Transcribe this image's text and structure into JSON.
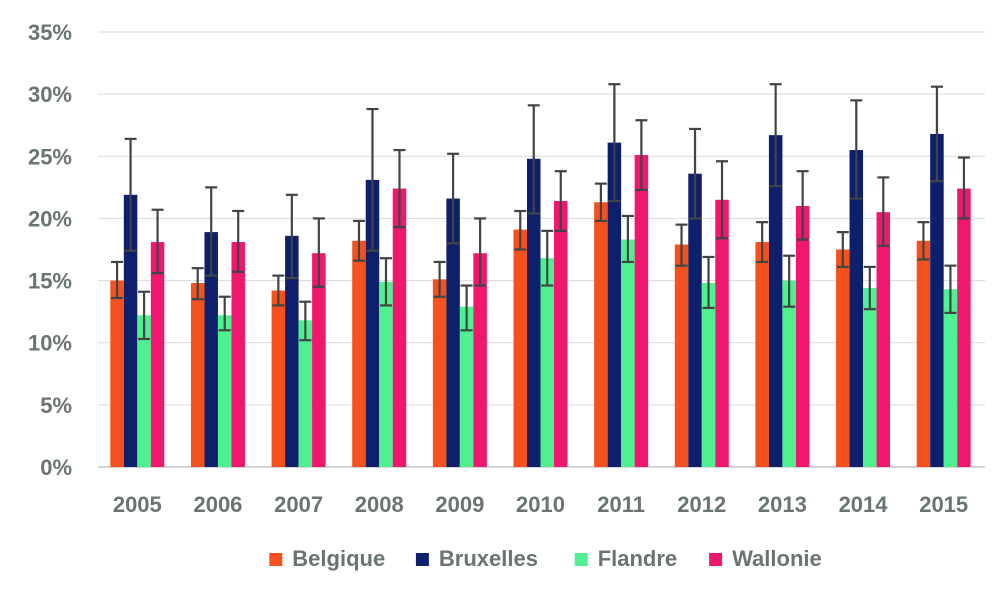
{
  "chart_data": {
    "type": "bar",
    "title": "",
    "xlabel": "",
    "ylabel": "",
    "ylim": [
      0,
      35
    ],
    "y_ticks": [
      0,
      5,
      10,
      15,
      20,
      25,
      30,
      35
    ],
    "y_tick_labels": [
      "0%",
      "5%",
      "10%",
      "15%",
      "20%",
      "25%",
      "30%",
      "35%"
    ],
    "grid": "horizontal",
    "legend_position": "bottom",
    "error_bar_color": "#404444",
    "categories": [
      "2005",
      "2006",
      "2007",
      "2008",
      "2009",
      "2010",
      "2011",
      "2012",
      "2013",
      "2014",
      "2015"
    ],
    "series": [
      {
        "name": "Belgique",
        "color": "#f4511e",
        "values": [
          15.0,
          14.8,
          14.2,
          18.2,
          15.1,
          19.1,
          21.3,
          17.9,
          18.1,
          17.5,
          18.2
        ],
        "error_low": [
          13.6,
          13.5,
          13.0,
          16.6,
          13.7,
          17.5,
          19.8,
          16.2,
          16.5,
          16.1,
          16.7
        ],
        "error_high": [
          16.5,
          16.0,
          15.4,
          19.8,
          16.5,
          20.6,
          22.8,
          19.5,
          19.7,
          18.9,
          19.7
        ]
      },
      {
        "name": "Bruxelles",
        "color": "#0e1f6b",
        "values": [
          21.9,
          18.9,
          18.6,
          23.1,
          21.6,
          24.8,
          26.1,
          23.6,
          26.7,
          25.5,
          26.8
        ],
        "error_low": [
          17.4,
          15.4,
          15.2,
          17.4,
          18.0,
          20.4,
          21.4,
          20.0,
          22.6,
          21.6,
          23.0
        ],
        "error_high": [
          26.4,
          22.5,
          21.9,
          28.8,
          25.2,
          29.1,
          30.8,
          27.2,
          30.8,
          29.5,
          30.6
        ]
      },
      {
        "name": "Flandre",
        "color": "#4ff08f",
        "values": [
          12.2,
          12.2,
          11.8,
          14.9,
          12.9,
          16.8,
          18.3,
          14.8,
          15.0,
          14.4,
          14.3
        ],
        "error_low": [
          10.3,
          11.0,
          10.2,
          13.0,
          11.0,
          14.6,
          16.5,
          12.8,
          12.9,
          12.7,
          12.4
        ],
        "error_high": [
          14.1,
          13.7,
          13.3,
          16.8,
          14.6,
          19.0,
          20.2,
          16.9,
          17.0,
          16.1,
          16.2
        ]
      },
      {
        "name": "Wallonie",
        "color": "#f0176e",
        "values": [
          18.1,
          18.1,
          17.2,
          22.4,
          17.2,
          21.4,
          25.1,
          21.5,
          21.0,
          20.5,
          22.4
        ],
        "error_low": [
          15.6,
          15.7,
          14.5,
          19.3,
          14.6,
          19.0,
          22.3,
          18.4,
          18.3,
          17.8,
          20.0
        ],
        "error_high": [
          20.7,
          20.6,
          20.0,
          25.5,
          20.0,
          23.8,
          27.9,
          24.6,
          23.8,
          23.3,
          24.9
        ]
      }
    ]
  }
}
